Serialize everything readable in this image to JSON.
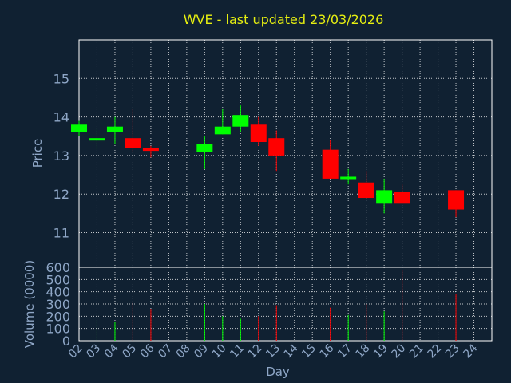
{
  "chart_data": {
    "type": "candlestick",
    "title": "WVE - last updated 23/03/2026",
    "xlabel": "Day",
    "price_ylabel": "Price",
    "volume_ylabel": "Volume (0000)",
    "x_tick_labels": [
      "02",
      "03",
      "04",
      "05",
      "06",
      "07",
      "08",
      "09",
      "10",
      "11",
      "12",
      "13",
      "14",
      "15",
      "16",
      "17",
      "18",
      "19",
      "20",
      "21",
      "22",
      "23",
      "24"
    ],
    "price_ticks": [
      11,
      12,
      13,
      14,
      15
    ],
    "price_ylim": [
      10.1,
      16.0
    ],
    "volume_ticks": [
      0,
      100,
      200,
      300,
      400,
      500,
      600
    ],
    "volume_ylim": [
      0,
      600
    ],
    "colors": {
      "up": "#00ff00",
      "down": "#ff0000",
      "grid": "#ffffff",
      "text": "#8fa7c7",
      "title": "#e5ee11",
      "background": "#102132"
    },
    "candles": [
      {
        "day": "02",
        "open": 13.6,
        "close": 13.8,
        "high": 13.9,
        "low": 13.5,
        "volume": 0
      },
      {
        "day": "03",
        "open": 13.4,
        "close": 13.45,
        "high": 13.7,
        "low": 13.15,
        "volume": 170
      },
      {
        "day": "04",
        "open": 13.6,
        "close": 13.75,
        "high": 14.0,
        "low": 13.3,
        "volume": 150
      },
      {
        "day": "05",
        "open": 13.45,
        "close": 13.2,
        "high": 14.2,
        "low": 13.1,
        "volume": 310
      },
      {
        "day": "06",
        "open": 13.2,
        "close": 13.12,
        "high": 13.25,
        "low": 12.95,
        "volume": 260
      },
      {
        "day": "09",
        "open": 13.1,
        "close": 13.3,
        "high": 13.5,
        "low": 12.65,
        "volume": 300
      },
      {
        "day": "10",
        "open": 13.55,
        "close": 13.75,
        "high": 14.2,
        "low": 13.55,
        "volume": 200
      },
      {
        "day": "11",
        "open": 13.75,
        "close": 14.05,
        "high": 14.3,
        "low": 13.6,
        "volume": 180
      },
      {
        "day": "12",
        "open": 13.8,
        "close": 13.35,
        "high": 14.0,
        "low": 13.25,
        "volume": 200
      },
      {
        "day": "13",
        "open": 13.45,
        "close": 13.0,
        "high": 13.65,
        "low": 12.6,
        "volume": 290
      },
      {
        "day": "16",
        "open": 13.15,
        "close": 12.4,
        "high": 13.4,
        "low": 12.4,
        "volume": 270
      },
      {
        "day": "17",
        "open": 12.4,
        "close": 12.45,
        "high": 12.65,
        "low": 12.25,
        "volume": 210
      },
      {
        "day": "18",
        "open": 12.3,
        "close": 11.9,
        "high": 12.6,
        "low": 11.9,
        "volume": 300
      },
      {
        "day": "19",
        "open": 11.75,
        "close": 12.1,
        "high": 12.4,
        "low": 11.5,
        "volume": 240
      },
      {
        "day": "20",
        "open": 12.05,
        "close": 11.75,
        "high": 12.25,
        "low": 11.75,
        "volume": 580
      },
      {
        "day": "23",
        "open": 12.1,
        "close": 11.6,
        "high": 12.1,
        "low": 11.4,
        "volume": 380
      }
    ]
  }
}
